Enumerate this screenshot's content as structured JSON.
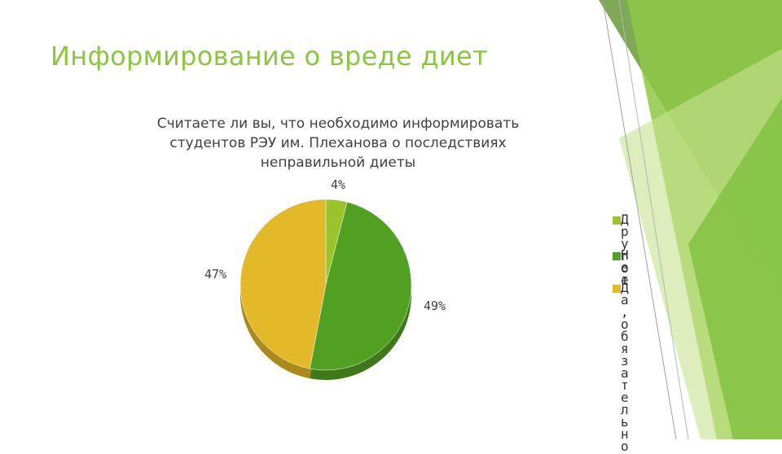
{
  "slide": {
    "title": "Информирование о вреде диет"
  },
  "colors": {
    "accent": "#8cc63f",
    "deco_light": "#c6e28f",
    "deco_mid": "#8fc846",
    "deco_dark": "#5a9c2a"
  },
  "chart_data": {
    "type": "pie",
    "title": "Считаете ли вы, что необходимо информировать студентов РЭУ им. Плеханова о последствиях неправильной диеты",
    "slices": [
      {
        "label": "Д р у г о е",
        "value": 4,
        "value_label": "4%",
        "color": "#9bc32a"
      },
      {
        "label": "Н е т",
        "value": 49,
        "value_label": "49%",
        "color": "#52a022"
      },
      {
        "label": "Д а , о б я з а т е л ь н о",
        "value": 47,
        "value_label": "47%",
        "color": "#e3b829"
      }
    ],
    "legend_position": "right"
  }
}
